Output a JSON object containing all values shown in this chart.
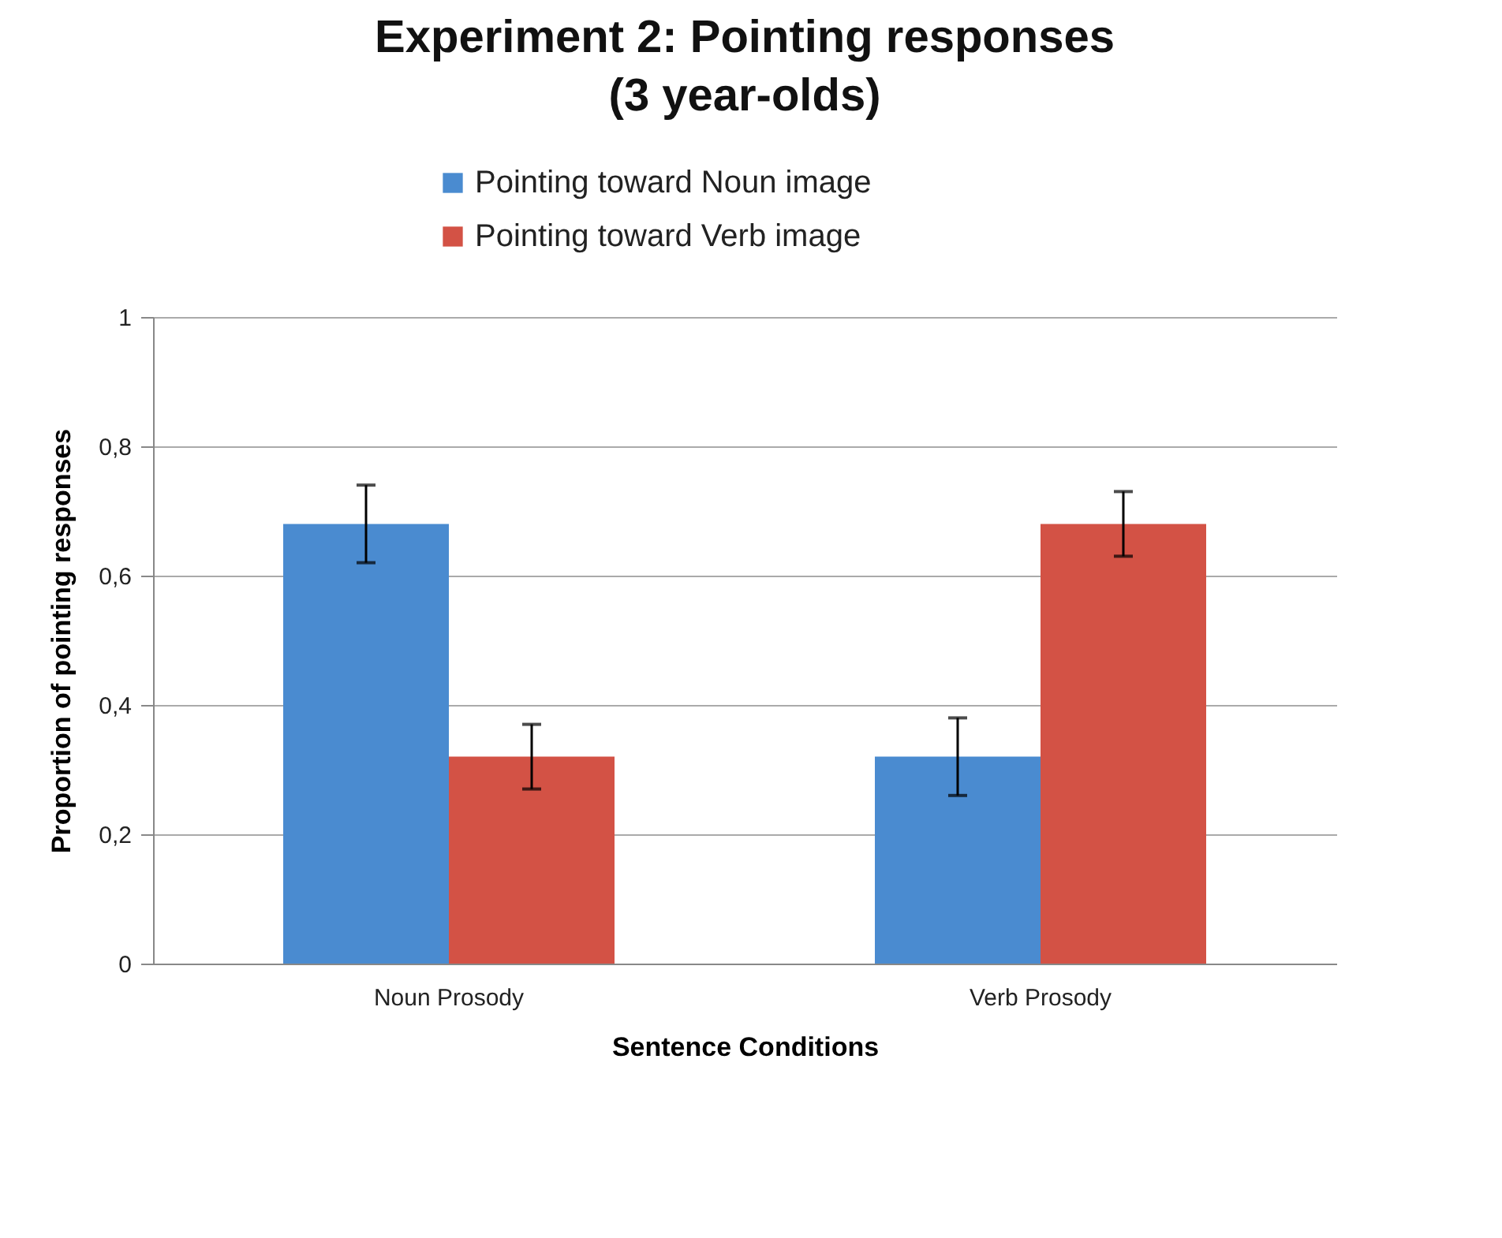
{
  "chart_data": {
    "type": "bar",
    "title": "Experiment 2: Pointing responses",
    "subtitle": "(3 year-olds)",
    "xlabel": "Sentence Conditions",
    "ylabel": "Proportion of pointing responses",
    "categories": [
      "Noun Prosody",
      "Verb Prosody"
    ],
    "series": [
      {
        "name": "Pointing toward Noun image",
        "color": "#4a8bd0",
        "values": [
          0.68,
          0.32
        ],
        "errors": [
          0.06,
          0.06
        ]
      },
      {
        "name": "Pointing toward Verb image",
        "color": "#d35245",
        "values": [
          0.32,
          0.68
        ],
        "errors": [
          0.05,
          0.05
        ]
      }
    ],
    "ylim": [
      0,
      1
    ],
    "yticks": [
      0,
      {
        "value": 0.2,
        "label": "0,2"
      },
      {
        "value": 0.4,
        "label": "0,4"
      },
      {
        "value": 0.6,
        "label": "0,6"
      },
      {
        "value": 0.8,
        "label": "0,8"
      },
      1
    ],
    "grid": "y",
    "legend": "top"
  }
}
